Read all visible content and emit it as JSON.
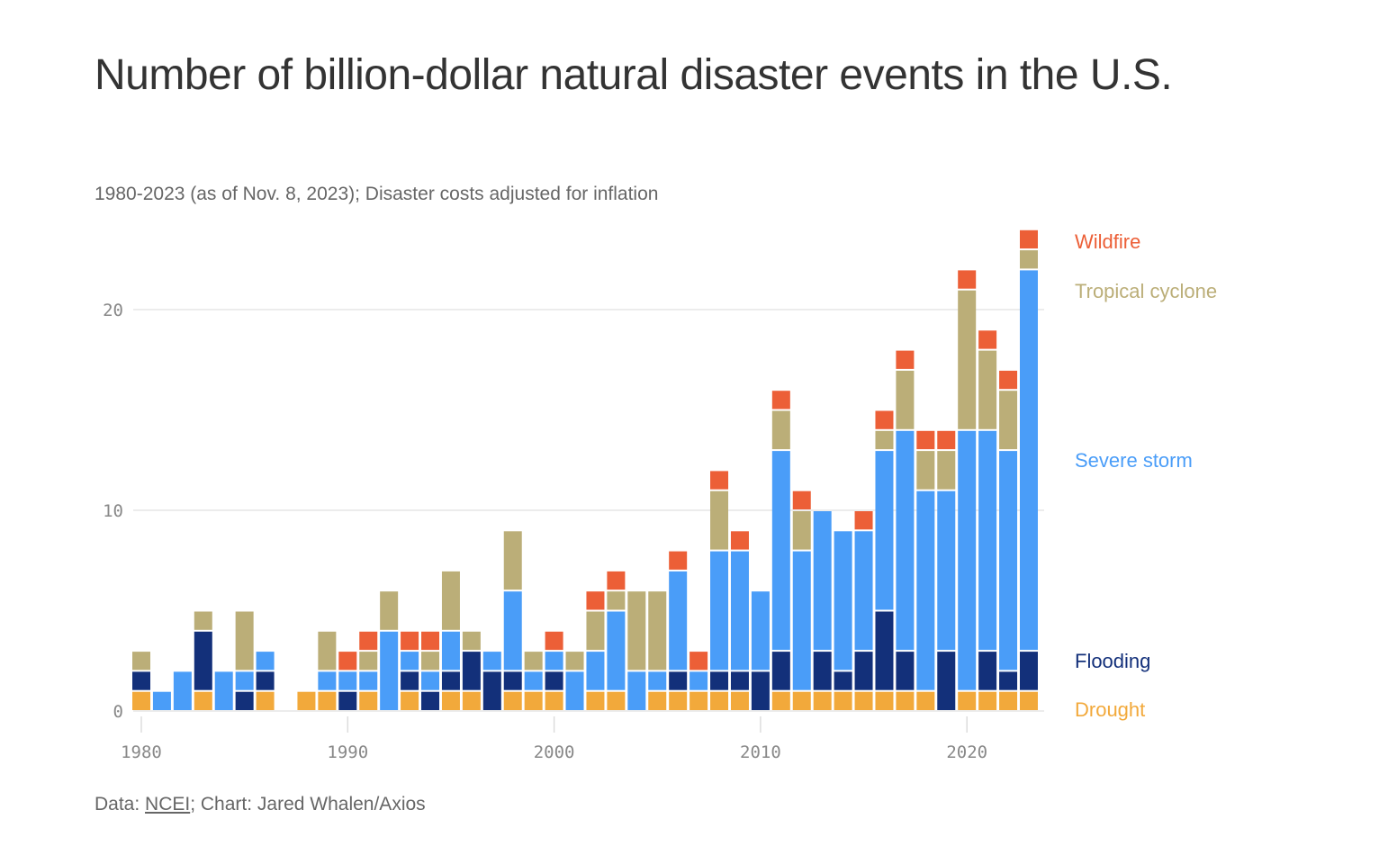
{
  "header": {
    "title": "Number of billion-dollar natural disaster events in the U.S.",
    "subtitle": "1980-2023 (as of Nov. 8, 2023); Disaster costs adjusted for inflation"
  },
  "footer": {
    "data_prefix": "Data: ",
    "source_link": "NCEI",
    "credit": "; Chart: Jared Whalen/Axios"
  },
  "chart_data": {
    "type": "bar",
    "stacked": true,
    "title": "Number of billion-dollar natural disaster events in the U.S.",
    "subtitle": "1980-2023 (as of Nov. 8, 2023); Disaster costs adjusted for inflation",
    "xlabel": "",
    "ylabel": "",
    "ylim": [
      0,
      24
    ],
    "yticks": [
      0,
      10,
      20
    ],
    "xticks": [
      1980,
      1990,
      2000,
      2010,
      2020
    ],
    "grid": true,
    "legend_placement": "right",
    "categories": [
      1980,
      1981,
      1982,
      1983,
      1984,
      1985,
      1986,
      1987,
      1988,
      1989,
      1990,
      1991,
      1992,
      1993,
      1994,
      1995,
      1996,
      1997,
      1998,
      1999,
      2000,
      2001,
      2002,
      2003,
      2004,
      2005,
      2006,
      2007,
      2008,
      2009,
      2010,
      2011,
      2012,
      2013,
      2014,
      2015,
      2016,
      2017,
      2018,
      2019,
      2020,
      2021,
      2022,
      2023
    ],
    "series": [
      {
        "name": "Drought",
        "color": "#f2a93b",
        "values": [
          1,
          0,
          0,
          1,
          0,
          0,
          1,
          0,
          1,
          1,
          0,
          1,
          0,
          1,
          0,
          1,
          1,
          0,
          1,
          1,
          1,
          0,
          1,
          1,
          0,
          1,
          1,
          1,
          1,
          1,
          0,
          1,
          1,
          1,
          1,
          1,
          1,
          1,
          1,
          0,
          1,
          1,
          1,
          1
        ]
      },
      {
        "name": "Flooding",
        "color": "#13307a",
        "values": [
          1,
          0,
          0,
          3,
          0,
          1,
          1,
          0,
          0,
          0,
          1,
          0,
          0,
          1,
          1,
          1,
          2,
          2,
          1,
          0,
          1,
          0,
          0,
          0,
          0,
          0,
          1,
          0,
          1,
          1,
          2,
          2,
          0,
          2,
          1,
          2,
          4,
          2,
          0,
          3,
          0,
          2,
          1,
          2
        ]
      },
      {
        "name": "Severe storm",
        "color": "#4a9df8",
        "values": [
          0,
          1,
          2,
          0,
          2,
          1,
          1,
          0,
          0,
          1,
          1,
          1,
          4,
          1,
          1,
          2,
          0,
          1,
          4,
          1,
          1,
          2,
          2,
          4,
          2,
          1,
          5,
          1,
          6,
          6,
          4,
          10,
          7,
          7,
          7,
          6,
          8,
          11,
          10,
          8,
          13,
          11,
          11,
          19
        ]
      },
      {
        "name": "Tropical cyclone",
        "color": "#bbae78",
        "values": [
          1,
          0,
          0,
          1,
          0,
          3,
          0,
          0,
          0,
          2,
          0,
          1,
          2,
          0,
          1,
          3,
          1,
          0,
          3,
          1,
          0,
          1,
          2,
          1,
          4,
          4,
          0,
          0,
          3,
          0,
          0,
          2,
          2,
          0,
          0,
          0,
          1,
          3,
          2,
          2,
          7,
          4,
          3,
          1
        ]
      },
      {
        "name": "Wildfire",
        "color": "#ec5f37",
        "values": [
          0,
          0,
          0,
          0,
          0,
          0,
          0,
          0,
          0,
          0,
          1,
          1,
          0,
          1,
          1,
          0,
          0,
          0,
          0,
          0,
          1,
          0,
          1,
          1,
          0,
          0,
          1,
          1,
          1,
          1,
          0,
          1,
          1,
          0,
          0,
          1,
          1,
          1,
          1,
          1,
          1,
          1,
          1,
          1
        ]
      }
    ],
    "legend": [
      {
        "label": "Wildfire",
        "color": "#ec5f37"
      },
      {
        "label": "Tropical cyclone",
        "color": "#bbae78"
      },
      {
        "label": "Severe storm",
        "color": "#4a9df8"
      },
      {
        "label": "Flooding",
        "color": "#13307a"
      },
      {
        "label": "Drought",
        "color": "#f2a93b"
      }
    ]
  }
}
